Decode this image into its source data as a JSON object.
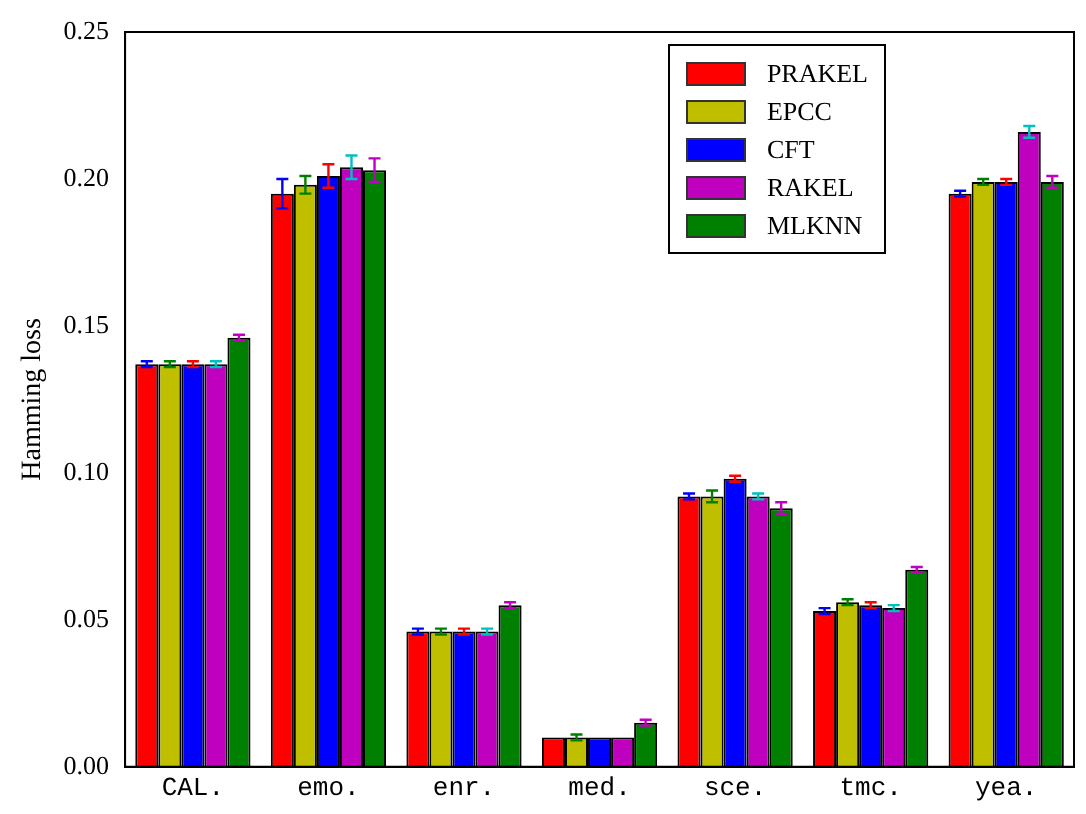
{
  "chart_data": {
    "type": "bar",
    "ylabel": "Hamming loss",
    "categories": [
      "CAL.",
      "emo.",
      "enr.",
      "med.",
      "sce.",
      "tmc.",
      "yea."
    ],
    "series": [
      {
        "name": "PRAKEL",
        "color": "#ff0000",
        "values": [
          0.137,
          0.195,
          0.046,
          0.01,
          0.092,
          0.053,
          0.195
        ],
        "errors": [
          0.001,
          0.005,
          0.001,
          null,
          0.001,
          0.001,
          0.001
        ]
      },
      {
        "name": "EPCC",
        "color": "#bfbf00",
        "values": [
          0.137,
          0.198,
          0.046,
          0.01,
          0.092,
          0.056,
          0.199
        ],
        "errors": [
          0.001,
          0.003,
          0.001,
          0.001,
          0.002,
          0.001,
          0.001
        ]
      },
      {
        "name": "CFT",
        "color": "#0000ff",
        "values": [
          0.137,
          0.201,
          0.046,
          0.01,
          0.098,
          0.055,
          0.199
        ],
        "errors": [
          0.001,
          0.004,
          0.001,
          null,
          0.001,
          0.001,
          0.001
        ]
      },
      {
        "name": "RAKEL",
        "color": "#bf00bf",
        "values": [
          0.137,
          0.204,
          0.046,
          0.01,
          0.092,
          0.054,
          0.216
        ],
        "errors": [
          0.001,
          0.004,
          0.001,
          null,
          0.001,
          0.001,
          0.002
        ]
      },
      {
        "name": "MLKNN",
        "color": "#008000",
        "values": [
          0.146,
          0.203,
          0.055,
          0.015,
          0.088,
          0.067,
          0.199
        ],
        "errors": [
          0.001,
          0.004,
          0.001,
          0.001,
          0.002,
          0.001,
          0.002
        ]
      }
    ],
    "ylim": [
      0,
      0.25
    ],
    "yticks": [
      {
        "value": 0,
        "label": "0.00"
      },
      {
        "value": 0.05,
        "label": "0.05"
      },
      {
        "value": 0.1,
        "label": "0.10"
      },
      {
        "value": 0.15,
        "label": "0.15"
      },
      {
        "value": 0.2,
        "label": "0.20"
      },
      {
        "value": 0.25,
        "label": "0.25"
      }
    ],
    "grid": false,
    "legend": "top right"
  }
}
